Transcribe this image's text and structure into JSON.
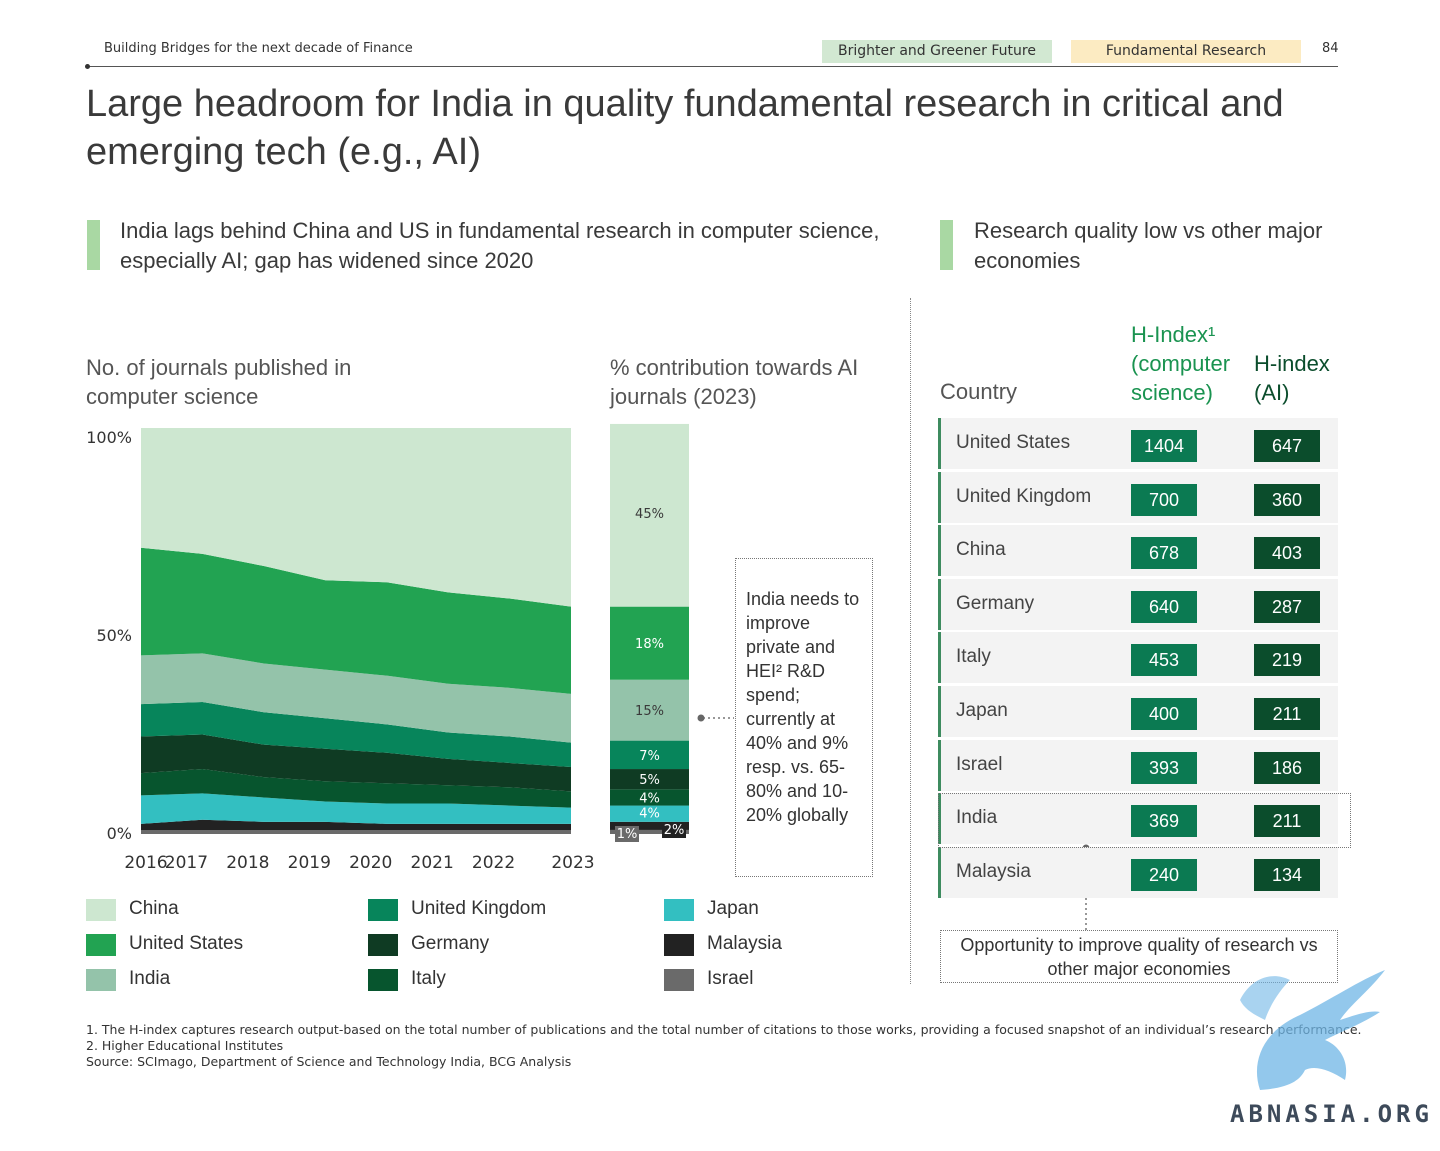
{
  "header": {
    "left_text": "Building Bridges for the next decade of Finance",
    "tag_green": "Brighter and Greener Future",
    "tag_yellow": "Fundamental Research",
    "page_number": "84"
  },
  "title": "Large headroom for India in quality fundamental research in critical and emerging tech (e.g., AI)",
  "left_section": {
    "heading": "India lags behind China and US in fundamental research in computer science, especially AI; gap has widened since 2020",
    "chart1_title": "No. of journals published in computer science",
    "chart2_title": "% contribution towards AI journals (2023)",
    "note": "India needs to improve private and HEI² R&D spend; currently at 40% and 9% resp. vs. 65-80% and 10-20% globally"
  },
  "right_section": {
    "heading": "Research quality low vs other major economies",
    "col_country": "Country",
    "col_hindex_cs": "H-Index¹ (computer science)",
    "col_hindex_ai": "H-index (AI)",
    "opportunity": "Opportunity to improve quality of research vs other major economies"
  },
  "colors": {
    "China": "#cde7d0",
    "United States": "#22a352",
    "India": "#94c3aa",
    "United Kingdom": "#07855b",
    "Germany": "#0f3b23",
    "Italy": "#07552e",
    "Japan": "#33bfc1",
    "Malaysia": "#222222",
    "Israel": "#6a6a6a"
  },
  "chart_data": [
    {
      "type": "area",
      "title": "No. of journals published in computer science",
      "x": [
        "2016",
        "2017",
        "2018",
        "2019",
        "2020",
        "2021",
        "2022",
        "2023"
      ],
      "yticks": [
        "0%",
        "50%",
        "100%"
      ],
      "ylim": [
        0,
        100
      ],
      "stack_order": [
        "Israel",
        "Malaysia",
        "Japan",
        "Italy",
        "Germany",
        "United Kingdom",
        "India",
        "United States",
        "China"
      ],
      "series": [
        {
          "name": "Israel",
          "values": [
            1,
            1,
            1,
            1,
            1,
            1,
            1,
            1
          ]
        },
        {
          "name": "Malaysia",
          "values": [
            1.5,
            2.5,
            2,
            2,
            1.5,
            1.5,
            1.5,
            1.5
          ]
        },
        {
          "name": "Japan",
          "values": [
            7,
            6.5,
            6,
            5,
            5,
            5,
            4.5,
            4
          ]
        },
        {
          "name": "Italy",
          "values": [
            5.5,
            6,
            5,
            5,
            5,
            4.5,
            4.5,
            4
          ]
        },
        {
          "name": "Germany",
          "values": [
            9,
            8.5,
            8,
            8,
            7.5,
            6.5,
            6,
            6
          ]
        },
        {
          "name": "United Kingdom",
          "values": [
            8,
            8,
            8,
            7.5,
            7,
            6.5,
            6.5,
            6
          ]
        },
        {
          "name": "India",
          "values": [
            12,
            12,
            12,
            12,
            12,
            12,
            12,
            12
          ]
        },
        {
          "name": "United States",
          "values": [
            26.5,
            24.5,
            24,
            22,
            23,
            22.5,
            22,
            21.5
          ]
        },
        {
          "name": "China",
          "values": [
            29.5,
            31,
            34,
            37.5,
            38,
            40.5,
            42,
            44
          ]
        }
      ]
    },
    {
      "type": "bar",
      "title": "% contribution towards AI journals (2023)",
      "stack_order": [
        "Israel",
        "Malaysia",
        "Japan",
        "Italy",
        "Germany",
        "United Kingdom",
        "India",
        "United States",
        "China"
      ],
      "series": [
        {
          "name": "Israel",
          "value": 1,
          "label": "1%"
        },
        {
          "name": "Malaysia",
          "value": 2,
          "label": "2%"
        },
        {
          "name": "Japan",
          "value": 4,
          "label": "4%"
        },
        {
          "name": "Italy",
          "value": 4,
          "label": "4%"
        },
        {
          "name": "Germany",
          "value": 5,
          "label": "5%"
        },
        {
          "name": "United Kingdom",
          "value": 7,
          "label": "7%"
        },
        {
          "name": "India",
          "value": 15,
          "label": "15%"
        },
        {
          "name": "United States",
          "value": 18,
          "label": "18%"
        },
        {
          "name": "China",
          "value": 45,
          "label": "45%"
        }
      ]
    },
    {
      "type": "table",
      "columns": [
        "Country",
        "H-Index¹ (computer science)",
        "H-index (AI)"
      ],
      "rows": [
        {
          "country": "United States",
          "h_cs": "1404",
          "h_ai": "647"
        },
        {
          "country": "United Kingdom",
          "h_cs": "700",
          "h_ai": "360"
        },
        {
          "country": "China",
          "h_cs": "678",
          "h_ai": "403"
        },
        {
          "country": "Germany",
          "h_cs": "640",
          "h_ai": "287"
        },
        {
          "country": "Italy",
          "h_cs": "453",
          "h_ai": "219"
        },
        {
          "country": "Japan",
          "h_cs": "400",
          "h_ai": "211"
        },
        {
          "country": "Israel",
          "h_cs": "393",
          "h_ai": "186"
        },
        {
          "country": "India",
          "h_cs": "369",
          "h_ai": "211"
        },
        {
          "country": "Malaysia",
          "h_cs": "240",
          "h_ai": "134"
        }
      ]
    }
  ],
  "legend": [
    [
      "China",
      "United Kingdom",
      "Japan"
    ],
    [
      "United States",
      "Germany",
      "Malaysia"
    ],
    [
      "India",
      "Italy",
      "Israel"
    ]
  ],
  "footnotes": [
    "1. The H-index captures research output-based on the total number of publications and the total number of citations to those works, providing a focused snapshot of an individual’s research performance.",
    "2. Higher Educational Institutes",
    "Source: SCImago, Department of Science and Technology India, BCG Analysis"
  ],
  "watermark": "ABNASIA.ORG"
}
